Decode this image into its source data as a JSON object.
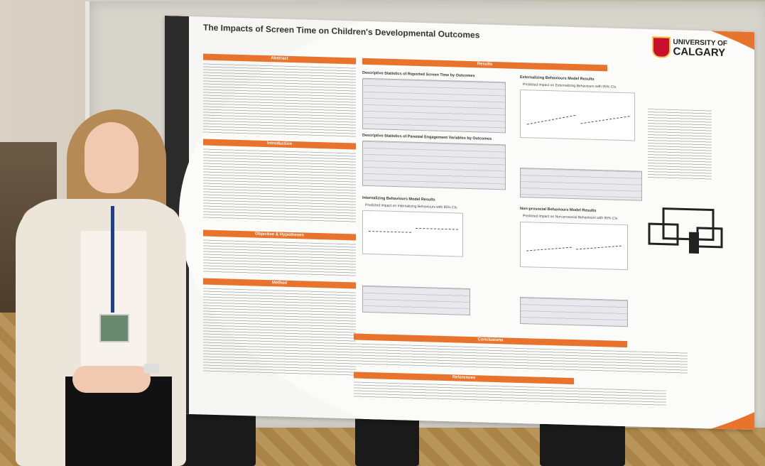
{
  "poster": {
    "title": "The Impacts of Screen Time on Children's Developmental Outcomes",
    "logo": {
      "line1": "UNIVERSITY OF",
      "line2": "CALGARY",
      "shield_icon": "university-shield-icon"
    },
    "sections": {
      "abstract": "Abstract",
      "introduction": "Introduction",
      "objective": "Objective & Hypotheses",
      "method": "Method",
      "results": "Results",
      "conclusions": "Conclusions",
      "references": "References"
    },
    "subheadings": {
      "desc_screen": "Descriptive Statistics of Reported Screen Time by Outcomes",
      "desc_parent": "Descriptive Statistics of Parental Engagement Variables by Outcomes",
      "ext_model": "Externalizing Behaviours Model Results",
      "int_model": "Internalizing Behaviours Model Results",
      "pro_model": "Non-prosocial Behaviours Model Results"
    },
    "plot_captions": {
      "ext": "Predicted impact on Externalizing Behaviours with 95% CIs",
      "int": "Predicted impact on Internalizing Behaviours with 95% CIs",
      "pro": "Predicted impact on Non-prosocial Behaviours with 95% CIs"
    }
  },
  "colors": {
    "accent": "#e8732c",
    "dark": "#2b2b2b"
  }
}
